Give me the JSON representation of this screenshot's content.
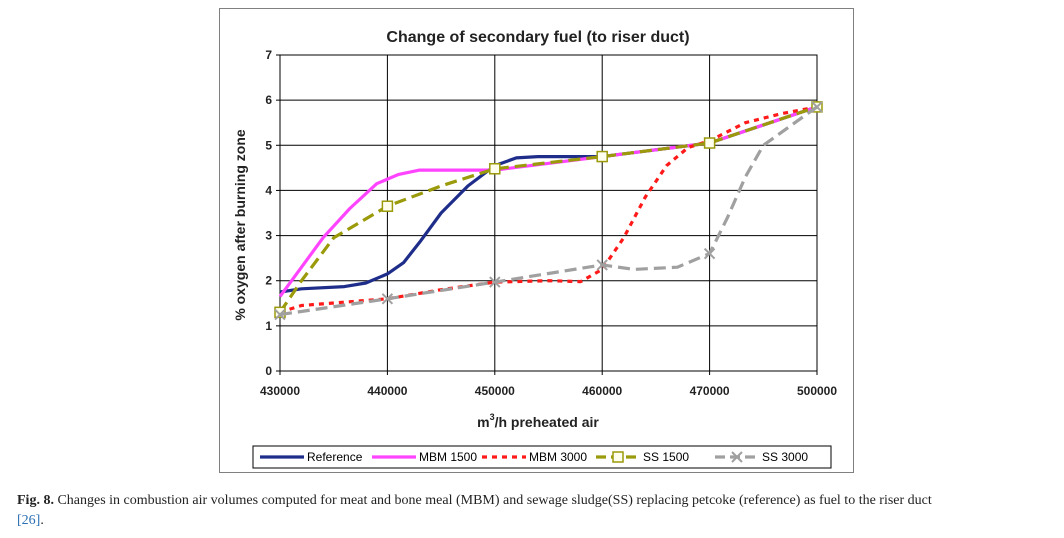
{
  "chart_data": {
    "type": "line",
    "title": "Change of secondary fuel (to riser duct)",
    "xlabel_main": "m",
    "xlabel_sup": "3",
    "xlabel_rest": "/h preheated air",
    "ylabel": "% oxygen after burning zone",
    "xlim": [
      430000,
      500000
    ],
    "ylim": [
      0,
      7
    ],
    "x_ticks": [
      "430000",
      "440000",
      "450000",
      "460000",
      "470000",
      "500000"
    ],
    "x_tick_values": [
      430000,
      440000,
      450000,
      460000,
      470000,
      500000
    ],
    "y_ticks": [
      "0",
      "1",
      "2",
      "3",
      "4",
      "5",
      "6",
      "7"
    ],
    "grid": true,
    "legend_position": "bottom",
    "series": [
      {
        "name": "Reference",
        "color": "#1f2d8a",
        "style": "solid",
        "marker": "none",
        "points": [
          [
            430000,
            1.75
          ],
          [
            432000,
            1.82
          ],
          [
            436000,
            1.87
          ],
          [
            438000,
            1.95
          ],
          [
            440000,
            2.15
          ],
          [
            441500,
            2.4
          ],
          [
            443000,
            2.85
          ],
          [
            445000,
            3.5
          ],
          [
            447500,
            4.1
          ],
          [
            450000,
            4.55
          ],
          [
            452000,
            4.72
          ],
          [
            454000,
            4.75
          ],
          [
            460000,
            4.75
          ],
          [
            470000,
            5.05
          ],
          [
            500000,
            5.85
          ]
        ]
      },
      {
        "name": "MBM 1500",
        "color": "#ff44ff",
        "style": "solid",
        "marker": "none",
        "points": [
          [
            430000,
            1.65
          ],
          [
            432000,
            2.3
          ],
          [
            434000,
            2.95
          ],
          [
            436500,
            3.6
          ],
          [
            439000,
            4.15
          ],
          [
            441000,
            4.35
          ],
          [
            443000,
            4.45
          ],
          [
            446000,
            4.45
          ],
          [
            450000,
            4.45
          ],
          [
            460000,
            4.75
          ],
          [
            470000,
            5.05
          ],
          [
            500000,
            5.85
          ]
        ]
      },
      {
        "name": "MBM 3000",
        "color": "#ff1a1a",
        "style": "dotted",
        "marker": "none",
        "points": [
          [
            430000,
            1.3
          ],
          [
            432000,
            1.45
          ],
          [
            440000,
            1.6
          ],
          [
            445000,
            1.8
          ],
          [
            450000,
            1.97
          ],
          [
            455000,
            2.0
          ],
          [
            458000,
            1.98
          ],
          [
            460000,
            2.25
          ],
          [
            462000,
            2.95
          ],
          [
            464000,
            3.85
          ],
          [
            466000,
            4.55
          ],
          [
            468000,
            4.95
          ],
          [
            470000,
            5.1
          ],
          [
            480000,
            5.5
          ],
          [
            490000,
            5.7
          ],
          [
            500000,
            5.85
          ]
        ]
      },
      {
        "name": "SS 1500",
        "color": "#9a9a0a",
        "style": "dashed",
        "marker": "square",
        "marker_at": [
          430000,
          440000,
          450000,
          460000,
          470000,
          500000
        ],
        "points": [
          [
            430000,
            1.3
          ],
          [
            432000,
            2.0
          ],
          [
            435000,
            2.95
          ],
          [
            440000,
            3.65
          ],
          [
            445000,
            4.1
          ],
          [
            450000,
            4.48
          ],
          [
            460000,
            4.75
          ],
          [
            470000,
            5.05
          ],
          [
            500000,
            5.85
          ]
        ]
      },
      {
        "name": "SS 3000",
        "color": "#a0a0a0",
        "style": "dashed",
        "marker": "x",
        "marker_at": [
          430000,
          440000,
          450000,
          460000,
          470000,
          500000
        ],
        "points": [
          [
            430000,
            1.25
          ],
          [
            440000,
            1.6
          ],
          [
            450000,
            1.97
          ],
          [
            460000,
            2.35
          ],
          [
            463000,
            2.25
          ],
          [
            467000,
            2.3
          ],
          [
            470000,
            2.6
          ],
          [
            475000,
            3.4
          ],
          [
            480000,
            4.3
          ],
          [
            485000,
            5.0
          ],
          [
            500000,
            5.85
          ]
        ]
      }
    ]
  },
  "caption": {
    "label": "Fig. 8.",
    "text": " Changes in combustion air volumes computed for meat and bone meal (MBM) and sewage sludge(SS) replacing petcoke (reference) as fuel to the riser duct",
    "ref": "[26]",
    "end": "."
  }
}
